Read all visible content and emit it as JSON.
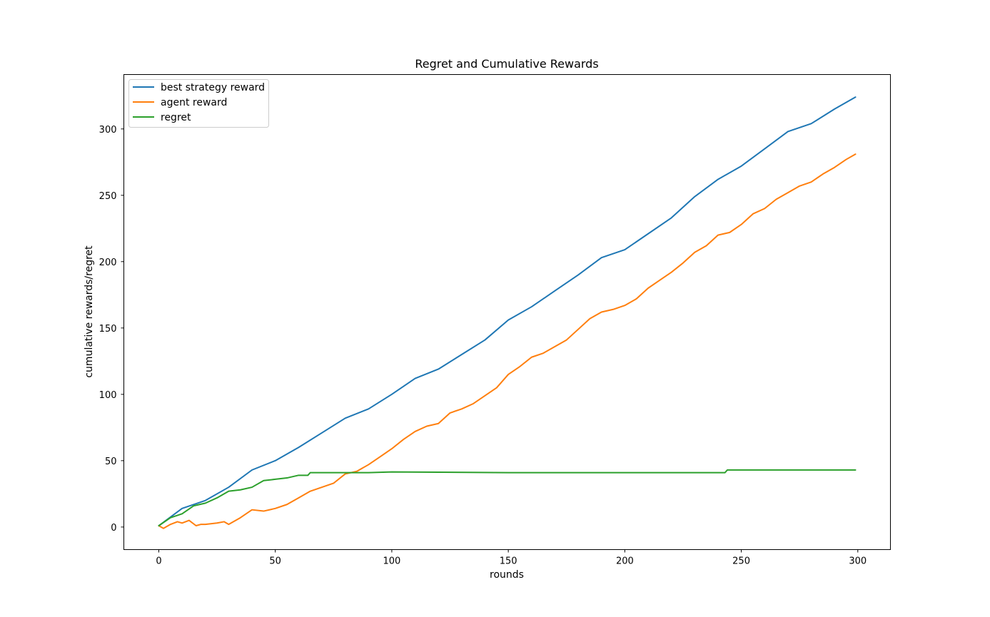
{
  "chart_data": {
    "type": "line",
    "title": "Regret and Cumulative Rewards",
    "xlabel": "rounds",
    "ylabel": "cumulative rewards/regret",
    "xlim": [
      -15,
      314
    ],
    "ylim": [
      -17,
      341
    ],
    "xticks": [
      0,
      50,
      100,
      150,
      200,
      250,
      300
    ],
    "yticks": [
      0,
      50,
      100,
      150,
      200,
      250,
      300
    ],
    "grid": false,
    "legend_position": "upper-left",
    "series": [
      {
        "name": "best strategy reward",
        "color": "#1f77b4",
        "x": [
          0,
          10,
          20,
          30,
          40,
          50,
          60,
          70,
          80,
          90,
          100,
          110,
          120,
          130,
          140,
          150,
          160,
          170,
          180,
          190,
          200,
          210,
          220,
          230,
          240,
          250,
          260,
          270,
          280,
          290,
          299
        ],
        "y": [
          1,
          14,
          20,
          30,
          43,
          50,
          60,
          71,
          82,
          89,
          100,
          112,
          119,
          130,
          141,
          156,
          166,
          178,
          190,
          203,
          209,
          221,
          233,
          249,
          262,
          272,
          285,
          298,
          304,
          315,
          324
        ]
      },
      {
        "name": "agent reward",
        "color": "#ff7f0e",
        "x": [
          0,
          2,
          5,
          8,
          10,
          13,
          16,
          18,
          20,
          25,
          28,
          30,
          35,
          40,
          45,
          50,
          55,
          60,
          65,
          70,
          75,
          80,
          85,
          90,
          95,
          100,
          105,
          110,
          115,
          120,
          125,
          130,
          135,
          140,
          145,
          150,
          155,
          160,
          165,
          170,
          175,
          180,
          185,
          190,
          195,
          200,
          205,
          210,
          215,
          220,
          225,
          230,
          235,
          240,
          245,
          250,
          255,
          260,
          265,
          270,
          275,
          280,
          285,
          290,
          295,
          299
        ],
        "y": [
          1,
          -1,
          2,
          4,
          3,
          5,
          1,
          2,
          2,
          3,
          4,
          2,
          7,
          13,
          12,
          14,
          17,
          22,
          27,
          30,
          33,
          40,
          42,
          47,
          53,
          59,
          66,
          72,
          76,
          78,
          86,
          89,
          93,
          99,
          105,
          115,
          121,
          128,
          131,
          136,
          141,
          149,
          157,
          162,
          164,
          167,
          172,
          180,
          186,
          192,
          199,
          207,
          212,
          220,
          222,
          228,
          236,
          240,
          247,
          252,
          257,
          260,
          266,
          271,
          277,
          281
        ]
      },
      {
        "name": "regret",
        "color": "#2ca02c",
        "x": [
          0,
          5,
          10,
          15,
          20,
          25,
          30,
          35,
          40,
          45,
          50,
          55,
          60,
          64,
          65,
          70,
          80,
          90,
          100,
          150,
          200,
          243,
          244,
          250,
          299
        ],
        "y": [
          1,
          7,
          10,
          16,
          18,
          22,
          27,
          28,
          30,
          35,
          36,
          37,
          39,
          39,
          41,
          41,
          41,
          41,
          41.5,
          41,
          41,
          41,
          43,
          43,
          43
        ]
      }
    ]
  }
}
